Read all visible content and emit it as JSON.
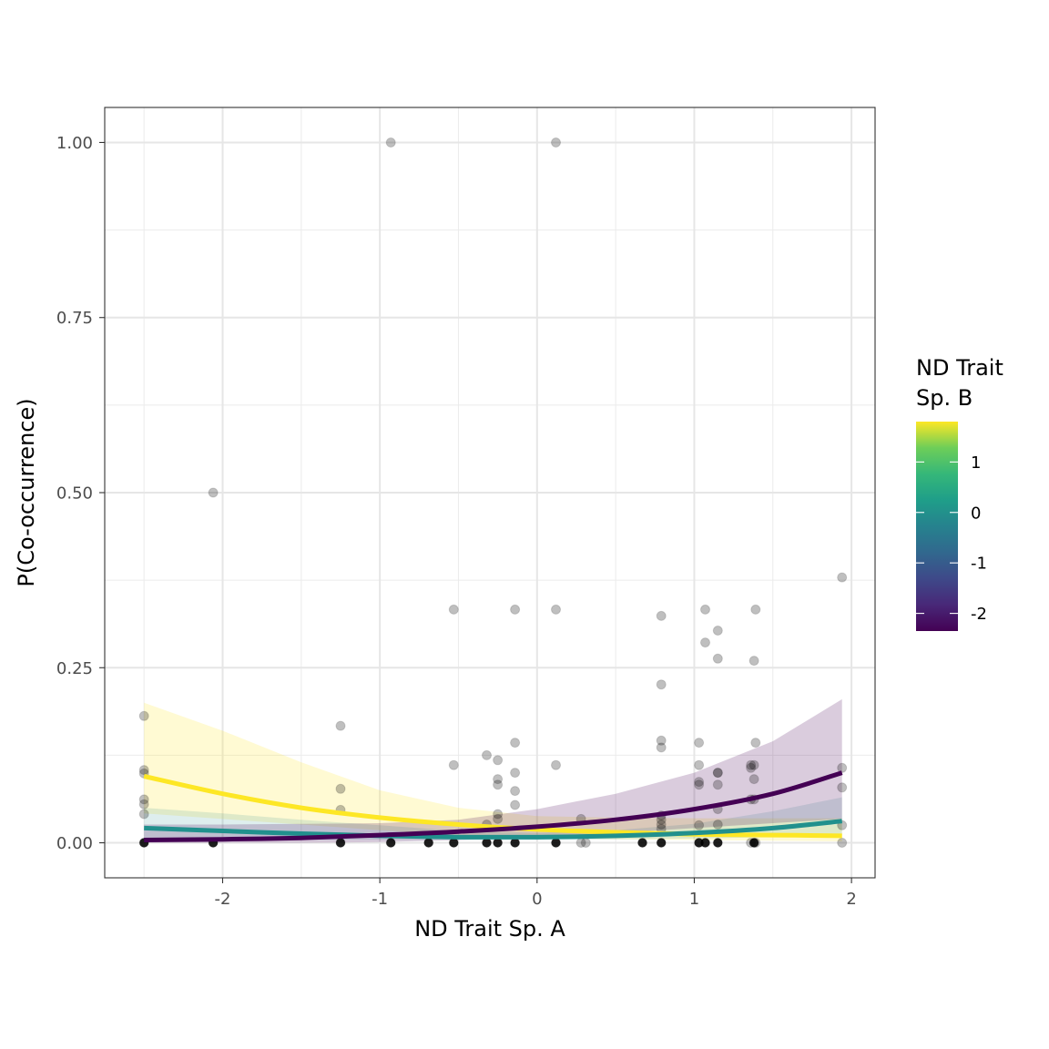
{
  "chart_data": {
    "type": "scatter",
    "title": "",
    "xlabel": "ND Trait Sp. A",
    "ylabel": "P(Co-occurrence)",
    "xlim": [
      -2.75,
      2.15
    ],
    "ylim": [
      -0.05,
      1.05
    ],
    "x_ticks": [
      -2,
      -1,
      0,
      1,
      2
    ],
    "x_tick_labels": [
      "-2",
      "-1",
      "0",
      "1",
      "2"
    ],
    "y_ticks": [
      0,
      0.25,
      0.5,
      0.75,
      1
    ],
    "y_tick_labels": [
      "0.00",
      "0.25",
      "0.50",
      "0.75",
      "1.00"
    ],
    "grid": true,
    "theme": "bw",
    "legend": {
      "title_lines": [
        "ND Trait",
        "Sp. B"
      ],
      "placement": "right",
      "type": "colorbar",
      "palette": "viridis",
      "range": [
        -2.35,
        1.8
      ],
      "ticks": [
        1,
        0,
        -1,
        -2
      ],
      "tick_labels": [
        "1",
        "0",
        "-1",
        "-2"
      ]
    },
    "points_observed": {
      "color": "#000000",
      "opacity": 0.25,
      "x": [
        -2.5,
        -2.5,
        -2.5,
        -2.5,
        -2.5,
        -2.5,
        -2.5,
        -2.06,
        -2.06,
        -1.25,
        -1.25,
        -1.25,
        -1.25,
        -0.93,
        -0.93,
        -0.69,
        -0.53,
        -0.53,
        -0.53,
        -0.32,
        -0.32,
        -0.32,
        -0.25,
        -0.25,
        -0.25,
        -0.25,
        -0.25,
        -0.25,
        -0.14,
        -0.14,
        -0.14,
        -0.14,
        -0.14,
        -0.14,
        0.12,
        0.12,
        0.12,
        0.12,
        0.28,
        0.28,
        0.31,
        0.67,
        0.79,
        0.79,
        0.79,
        0.79,
        0.79,
        0.79,
        0.79,
        0.79,
        0.79,
        1.03,
        1.03,
        1.03,
        1.03,
        1.03,
        1.03,
        1.07,
        1.07,
        1.07,
        1.15,
        1.15,
        1.15,
        1.15,
        1.15,
        1.15,
        1.15,
        1.15,
        1.36,
        1.36,
        1.36,
        1.36,
        1.38,
        1.38,
        1.38,
        1.38,
        1.38,
        1.39,
        1.39,
        1.39,
        1.94,
        1.94,
        1.94,
        1.94,
        1.94
      ],
      "y": [
        0.181,
        0.104,
        0.099,
        0.062,
        0.055,
        0.041,
        0,
        0.5,
        0,
        0.167,
        0.077,
        0.047,
        0,
        1.0,
        0,
        0,
        0.333,
        0.111,
        0,
        0.125,
        0.026,
        0,
        0.118,
        0.091,
        0.083,
        0.041,
        0.034,
        0,
        0.333,
        0.143,
        0.1,
        0.074,
        0.054,
        0,
        1.0,
        0.333,
        0.111,
        0,
        0.034,
        0,
        0,
        0,
        0.324,
        0.226,
        0.146,
        0.136,
        0.039,
        0.033,
        0.026,
        0.02,
        0,
        0.143,
        0.111,
        0.087,
        0.083,
        0.025,
        0,
        0.333,
        0.286,
        0,
        0.303,
        0.263,
        0.1,
        0.083,
        0.048,
        0.026,
        0.1,
        0,
        0.111,
        0.107,
        0.062,
        0,
        0.26,
        0.111,
        0.091,
        0.062,
        0,
        0.333,
        0.143,
        0,
        0.379,
        0.107,
        0.079,
        0.025,
        0
      ]
    },
    "points_zero": {
      "color": "#000000",
      "opacity": 0.85,
      "x": [
        -2.5,
        -2.06,
        -1.25,
        -0.93,
        -0.69,
        -0.53,
        -0.32,
        -0.25,
        -0.14,
        0.12,
        0.67,
        0.79,
        1.03,
        1.07,
        1.15,
        1.38
      ],
      "y": [
        0,
        0,
        0,
        0,
        0,
        0,
        0,
        0,
        0,
        0,
        0,
        0,
        0,
        0,
        0,
        0
      ]
    },
    "series": [
      {
        "level": 1.8,
        "color": "#fde725",
        "ribbon_opacity": 0.2,
        "x": [
          -2.5,
          -2.0,
          -1.5,
          -1.0,
          -0.5,
          0.0,
          0.5,
          1.0,
          1.5,
          1.94
        ],
        "y": [
          0.095,
          0.07,
          0.05,
          0.036,
          0.026,
          0.019,
          0.015,
          0.012,
          0.011,
          0.01
        ],
        "lower": [
          0.042,
          0.034,
          0.026,
          0.018,
          0.011,
          0.007,
          0.005,
          0.004,
          0.003,
          0.002
        ],
        "upper": [
          0.2,
          0.16,
          0.115,
          0.075,
          0.05,
          0.038,
          0.036,
          0.035,
          0.035,
          0.035
        ]
      },
      {
        "level": 0.0,
        "color": "#21908d",
        "ribbon_opacity": 0.15,
        "x": [
          -2.5,
          -2.0,
          -1.5,
          -1.0,
          -0.5,
          0.0,
          0.5,
          1.0,
          1.5,
          1.94
        ],
        "y": [
          0.021,
          0.017,
          0.013,
          0.01,
          0.008,
          0.008,
          0.01,
          0.014,
          0.021,
          0.031
        ],
        "lower": [
          0.004,
          0.004,
          0.004,
          0.004,
          0.004,
          0.004,
          0.005,
          0.006,
          0.008,
          0.01
        ],
        "upper": [
          0.05,
          0.042,
          0.033,
          0.025,
          0.017,
          0.014,
          0.018,
          0.027,
          0.045,
          0.065
        ]
      },
      {
        "level": -2.35,
        "color": "#440154",
        "ribbon_opacity": 0.2,
        "x": [
          -2.5,
          -2.0,
          -1.5,
          -1.0,
          -0.5,
          0.0,
          0.5,
          1.0,
          1.5,
          1.94
        ],
        "y": [
          0.004,
          0.005,
          0.007,
          0.011,
          0.016,
          0.023,
          0.033,
          0.048,
          0.07,
          0.1
        ],
        "lower": [
          0.0,
          0.0,
          0.0,
          0.001,
          0.004,
          0.008,
          0.014,
          0.021,
          0.028,
          0.034
        ],
        "upper": [
          0.026,
          0.026,
          0.027,
          0.028,
          0.033,
          0.048,
          0.07,
          0.1,
          0.145,
          0.205
        ]
      }
    ]
  }
}
